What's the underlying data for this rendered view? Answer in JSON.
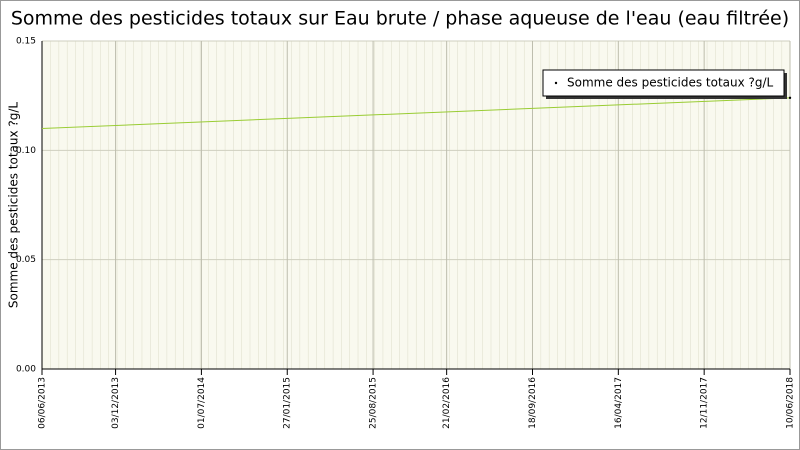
{
  "chart_data": {
    "type": "line",
    "title": "Somme des pesticides totaux sur Eau brute / phase aqueuse de l'eau (eau filtrée)",
    "y_label": "Somme des pesticides totaux ?g/L",
    "x": [
      "06/06/2013",
      "10/06/2018"
    ],
    "series": [
      {
        "name": "Somme des pesticides totaux ?g/L",
        "color": "#99cc33",
        "values": [
          0.11,
          0.124
        ]
      }
    ],
    "xlim": [
      "06/06/2013",
      "10/06/2018"
    ],
    "xticks": [
      "06/06/2013",
      "03/12/2013",
      "01/07/2014",
      "27/01/2015",
      "25/08/2015",
      "21/02/2016",
      "18/09/2016",
      "16/04/2017",
      "12/11/2017",
      "10/06/2018"
    ],
    "ylim": [
      0,
      0.15
    ],
    "yticks": [
      {
        "value": 0,
        "label": "0.00"
      },
      0.05,
      {
        "value": 0.1,
        "label": "0.10"
      },
      0.15
    ],
    "grid": true,
    "legend": "top-right"
  }
}
